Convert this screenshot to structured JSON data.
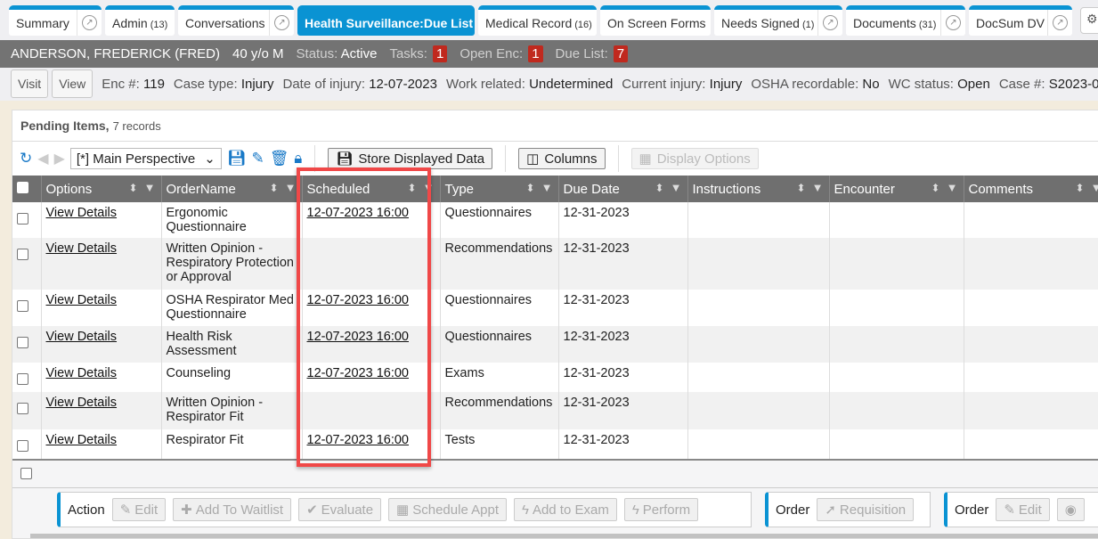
{
  "tabs": [
    {
      "label": "Summary",
      "count": "",
      "popout": true
    },
    {
      "label": "Admin",
      "count": "(13)",
      "popout": false
    },
    {
      "label": "Conversations",
      "count": "",
      "popout": true
    },
    {
      "label": "Health Surveillance:Due List",
      "count": "",
      "popout": false,
      "active": true
    },
    {
      "label": "Medical Record",
      "count": "(16)",
      "popout": false
    },
    {
      "label": "On Screen Forms",
      "count": "",
      "popout": false
    },
    {
      "label": "Needs Signed",
      "count": "(1)",
      "popout": true
    },
    {
      "label": "Documents",
      "count": "(31)",
      "popout": true
    },
    {
      "label": "DocSum DV",
      "count": "",
      "popout": true
    }
  ],
  "patient": {
    "name": "ANDERSON, FREDERICK (FRED)",
    "age": "40 y/o M",
    "status_label": "Status:",
    "status": "Active",
    "tasks_label": "Tasks:",
    "tasks": "1",
    "open_enc_label": "Open Enc:",
    "open_enc": "1",
    "due_list_label": "Due List:",
    "due_list": "7"
  },
  "encounter": {
    "visit": "Visit",
    "view": "View",
    "enc_label": "Enc #:",
    "enc": "119",
    "case_type_label": "Case type:",
    "case_type": "Injury",
    "doi_label": "Date of injury:",
    "doi": "12-07-2023",
    "work_label": "Work related:",
    "work": "Undetermined",
    "current_label": "Current injury:",
    "current": "Injury",
    "osha_label": "OSHA recordable:",
    "osha": "No",
    "wc_label": "WC status:",
    "wc": "Open",
    "case_label": "Case #:",
    "case": "S2023-0"
  },
  "panel": {
    "title": "Pending Items,",
    "records": "7 records",
    "perspective": "[*] Main Perspective",
    "store": "Store Displayed Data",
    "columns": "Columns",
    "display_options": "Display Options"
  },
  "columns": [
    "Options",
    "OrderName",
    "Scheduled",
    "Type",
    "Due Date",
    "Instructions",
    "Encounter",
    "Comments"
  ],
  "rows": [
    {
      "options": "View Details",
      "order": "Ergonomic Questionnaire",
      "scheduled": "12-07-2023 16:00",
      "type": "Questionnaires",
      "due": "12-31-2023"
    },
    {
      "options": "View Details",
      "order": "Written Opinion - Respiratory Protection or Approval",
      "scheduled": "",
      "type": "Recommendations",
      "due": "12-31-2023"
    },
    {
      "options": "View Details",
      "order": "OSHA Respirator Med Questionnaire",
      "scheduled": "12-07-2023 16:00",
      "type": "Questionnaires",
      "due": "12-31-2023"
    },
    {
      "options": "View Details",
      "order": "Health Risk Assessment",
      "scheduled": "12-07-2023 16:00",
      "type": "Questionnaires",
      "due": "12-31-2023"
    },
    {
      "options": "View Details",
      "order": "Counseling",
      "scheduled": "12-07-2023 16:00",
      "type": "Exams",
      "due": "12-31-2023"
    },
    {
      "options": "View Details",
      "order": "Written Opinion - Respirator Fit",
      "scheduled": "",
      "type": "Recommendations",
      "due": "12-31-2023"
    },
    {
      "options": "View Details",
      "order": "Respirator Fit",
      "scheduled": "12-07-2023 16:00",
      "type": "Tests",
      "due": "12-31-2023"
    }
  ],
  "actions": {
    "action_label": "Action",
    "edit": "Edit",
    "waitlist": "Add To Waitlist",
    "evaluate": "Evaluate",
    "schedule": "Schedule Appt",
    "add_exam": "Add to Exam",
    "perform": "Perform",
    "order_label": "Order",
    "requisition": "Requisition",
    "order2_label": "Order",
    "edit2": "Edit"
  },
  "colors": {
    "accent": "#0a93d3",
    "header": "#6f6f6f",
    "badge": "#c0291e",
    "highlight": "#f04848"
  }
}
